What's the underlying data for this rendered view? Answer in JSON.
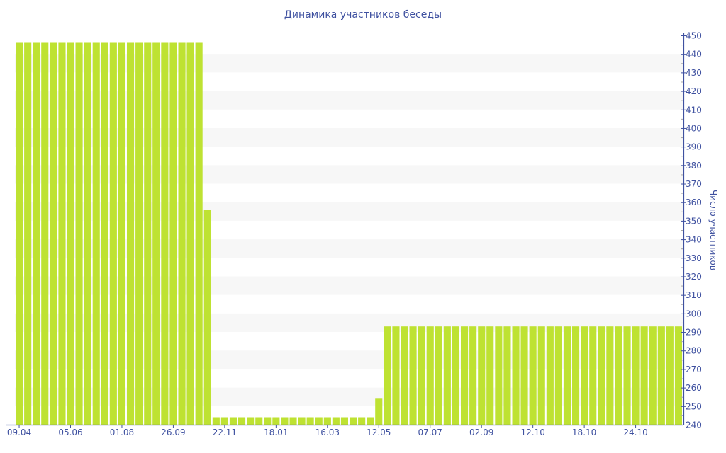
{
  "chart_data": {
    "type": "bar",
    "title": "Динамика участников беседы",
    "xlabel": "",
    "ylabel": "Число участников",
    "ylim": [
      240,
      450
    ],
    "y_axis_position": "right",
    "y_ticks": [
      240,
      250,
      260,
      270,
      280,
      290,
      300,
      310,
      320,
      330,
      340,
      350,
      360,
      370,
      380,
      390,
      400,
      410,
      420,
      430,
      440,
      450
    ],
    "x_tick_labels": [
      {
        "index": 0,
        "label": "09.04"
      },
      {
        "index": 6,
        "label": "05.06"
      },
      {
        "index": 12,
        "label": "01.08"
      },
      {
        "index": 18,
        "label": "26.09"
      },
      {
        "index": 24,
        "label": "22.11"
      },
      {
        "index": 30,
        "label": "18.01"
      },
      {
        "index": 36,
        "label": "16.03"
      },
      {
        "index": 42,
        "label": "12.05"
      },
      {
        "index": 48,
        "label": "07.07"
      },
      {
        "index": 54,
        "label": "02.09"
      },
      {
        "index": 60,
        "label": "12.10"
      },
      {
        "index": 66,
        "label": "18.10"
      },
      {
        "index": 72,
        "label": "24.10"
      }
    ],
    "values": [
      446,
      446,
      446,
      446,
      446,
      446,
      446,
      446,
      446,
      446,
      446,
      446,
      446,
      446,
      446,
      446,
      446,
      446,
      446,
      446,
      446,
      446,
      356,
      244,
      244,
      244,
      244,
      244,
      244,
      244,
      244,
      244,
      244,
      244,
      244,
      244,
      244,
      244,
      244,
      244,
      244,
      244,
      254,
      293,
      293,
      293,
      293,
      293,
      293,
      293,
      293,
      293,
      293,
      293,
      293,
      293,
      293,
      293,
      293,
      293,
      293,
      293,
      293,
      293,
      293,
      293,
      293,
      293,
      293,
      293,
      293,
      293,
      293,
      293,
      293,
      293,
      293,
      293
    ],
    "grid": "alternating horizontal bands",
    "colors": {
      "bar": "#bee232",
      "axis": "#3f51a0",
      "band": "#f7f7f7"
    }
  }
}
